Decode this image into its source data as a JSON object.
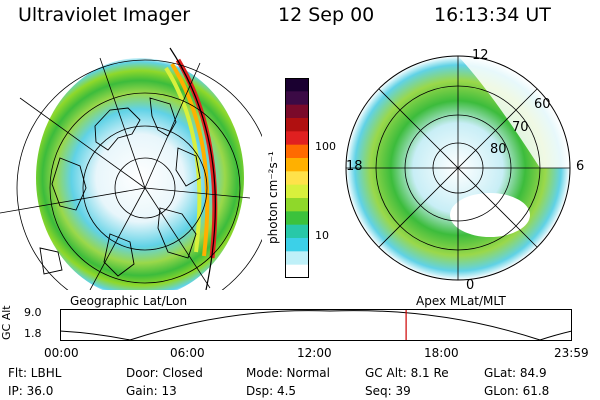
{
  "header": {
    "title": "Ultraviolet Imager",
    "date": "12 Sep 00",
    "time": "16:13:34 UT"
  },
  "left_panel": {
    "label": "Geographic Lat/Lon"
  },
  "right_panel": {
    "label": "Apex MLat/MLT",
    "lat_labels": [
      "60",
      "70",
      "80"
    ],
    "mlt_labels": {
      "top": "12",
      "left": "18",
      "right": "6",
      "bottom": "0"
    }
  },
  "colorbar": {
    "unit": "photon cm⁻²s⁻¹",
    "ticks": [
      "100",
      "10"
    ],
    "colors": [
      "#1a0030",
      "#3b0a45",
      "#7a0a2a",
      "#b01010",
      "#e02020",
      "#ff6a00",
      "#ffb000",
      "#ffe24a",
      "#d8f03c",
      "#8fd82a",
      "#3cc23c",
      "#28c8a8",
      "#3cd0e8",
      "#bff0f8",
      "#ffffff"
    ]
  },
  "timeline": {
    "ylabel": "GC Alt",
    "ymax": "9.0",
    "ymin": "1.8",
    "current_fraction": 0.676,
    "times": [
      "00:00",
      "06:00",
      "12:00",
      "18:00",
      "23:59"
    ]
  },
  "info": {
    "flt": "Flt: LBHL",
    "ip": "IP: 36.0",
    "door": "Door: Closed",
    "gain": "Gain: 13",
    "mode": "Mode: Normal",
    "dsp": "Dsp:     4.5",
    "gcalt": "GC Alt: 8.1 Re",
    "seq": "Seq: 39",
    "glat": "GLat:  84.9",
    "glon": "GLon:  61.8"
  },
  "colors": {
    "background": "#ffffff",
    "grid": "#000000",
    "marker": "#cc0000"
  }
}
